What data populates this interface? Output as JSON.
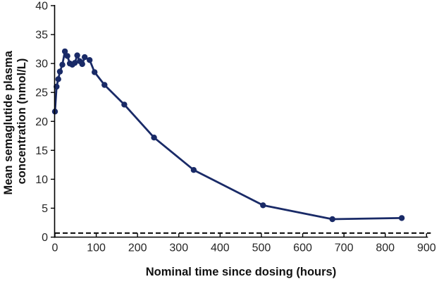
{
  "figure": {
    "y_axis_title_line1": "Mean semaglutide plasma",
    "y_axis_title_line2": "concentration (nmol/L)",
    "x_axis_title": "Nominal time since dosing (hours)"
  },
  "chart_data": {
    "type": "line",
    "title": "",
    "xlabel": "Nominal time since dosing (hours)",
    "ylabel": "Mean semaglutide plasma concentration (nmol/L)",
    "xlim": [
      0,
      900
    ],
    "ylim": [
      0,
      40
    ],
    "x_ticks": [
      0,
      100,
      200,
      300,
      400,
      500,
      600,
      700,
      800,
      900
    ],
    "y_ticks": [
      0,
      5,
      10,
      15,
      20,
      25,
      30,
      35,
      40
    ],
    "grid": false,
    "legend_position": "none",
    "series": [
      {
        "name": "Mean semaglutide plasma concentration",
        "color": "#192a67",
        "marker": "circle",
        "marker_radius": 4.2,
        "line_width": 2.8,
        "x": [
          0,
          4,
          8,
          12,
          18,
          24,
          30,
          36,
          42,
          48,
          54,
          60,
          66,
          72,
          84,
          96,
          120,
          168,
          240,
          336,
          504,
          672,
          840
        ],
        "y": [
          21.7,
          26.0,
          27.3,
          28.6,
          29.8,
          32.1,
          31.3,
          30.0,
          29.8,
          30.1,
          31.4,
          30.4,
          29.9,
          31.1,
          30.6,
          28.5,
          26.3,
          22.9,
          17.2,
          11.6,
          5.5,
          3.1,
          3.3
        ]
      }
    ],
    "reference_line": {
      "y": 0.7,
      "style": "dashed",
      "color": "#000000"
    },
    "axis_color": "#000000"
  }
}
